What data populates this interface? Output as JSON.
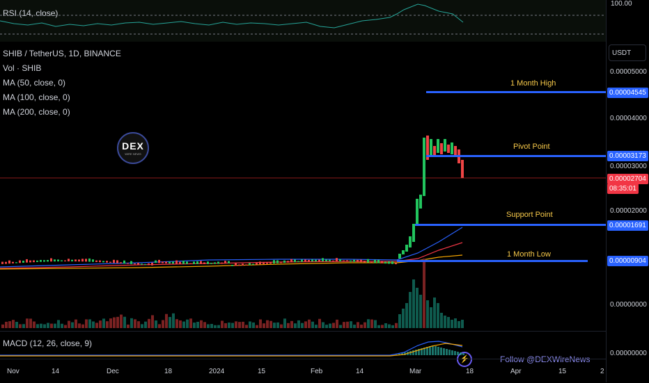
{
  "rsi": {
    "label": "RSI (14, close)",
    "axis_value": "100.00"
  },
  "legend": {
    "symbol": "SHIB / TetherUS, 1D, BINANCE",
    "volume": "Vol · SHIB",
    "ma50": "MA (50, close, 0)",
    "ma100": "MA (100, close, 0)",
    "ma200": "MA (200, close, 0)"
  },
  "logo": {
    "text": "DEX",
    "sub": "WIRE NEWS"
  },
  "levels": {
    "month_high": {
      "label": "1 Month High",
      "price": "0.00004545"
    },
    "pivot": {
      "label": "Pivot Point",
      "price": "0.00003173"
    },
    "support": {
      "label": "Support Point",
      "price": "0.00001691"
    },
    "month_low": {
      "label": "1 Month Low",
      "price": "0.00000904"
    }
  },
  "current_price": {
    "price": "0.00002704",
    "countdown": "08:35:01"
  },
  "price_axis": {
    "currency": "USDT",
    "ticks": [
      "0.00005000",
      "0.00004000",
      "0.00003000",
      "0.00002000",
      "0.00000000",
      "0.00000000"
    ]
  },
  "macd": {
    "label": "MACD (12, 26, close, 9)"
  },
  "time_axis": [
    "Nov",
    "14",
    "Dec",
    "18",
    "2024",
    "15",
    "Feb",
    "14",
    "Mar",
    "18",
    "Apr",
    "15",
    "2"
  ],
  "follow_text": "Follow @DEXWireNews",
  "colors": {
    "up": "#22c55e",
    "down": "#ef4444",
    "level": "#2962ff",
    "label": "#f7c94a",
    "ma50": "#2962ff",
    "ma100": "#f23645",
    "ma200": "#f7a600",
    "rsi": "#26a69a"
  }
}
